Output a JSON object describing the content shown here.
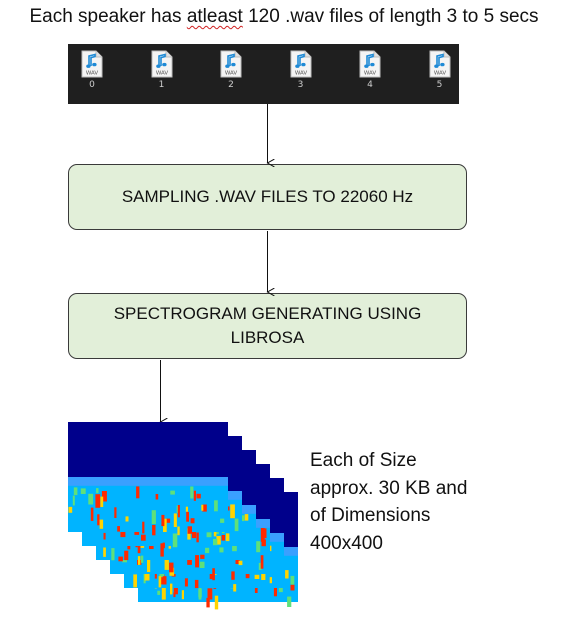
{
  "header": {
    "prefix": "Each speaker has ",
    "flagged_word": "atleast",
    "suffix": " 120 .wav files of length 3 to 5 secs"
  },
  "wav_files": [
    {
      "icon": "wav-file-icon",
      "label": "WAV",
      "number": "0"
    },
    {
      "icon": "wav-file-icon",
      "label": "WAV",
      "number": "1"
    },
    {
      "icon": "wav-file-icon",
      "label": "WAV",
      "number": "2"
    },
    {
      "icon": "wav-file-icon",
      "label": "WAV",
      "number": "3"
    },
    {
      "icon": "wav-file-icon",
      "label": "WAV",
      "number": "4"
    },
    {
      "icon": "wav-file-icon",
      "label": "WAV",
      "number": "5"
    }
  ],
  "steps": {
    "sampling": "SAMPLING .WAV FILES TO 22060 Hz",
    "spectrogram": "SPECTROGRAM GENERATING USING LIBROSA"
  },
  "output_note": {
    "line1": "Each of Size",
    "line2": "approx. 30 KB and",
    "line3": "of Dimensions",
    "line4": "400x400"
  },
  "colors": {
    "box_fill": "#e2efd9",
    "box_border": "#3a3a3a",
    "strip_bg": "#1f1f1f",
    "spectrogram_top": "#00008b",
    "spectrogram_mid": "#00b4ff",
    "spectrogram_hot": "#ff2a00"
  }
}
